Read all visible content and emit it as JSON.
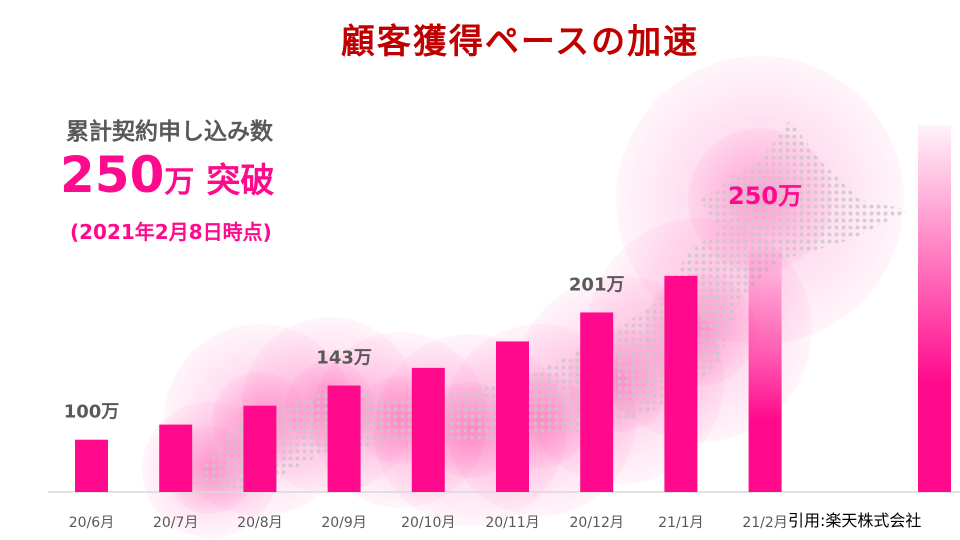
{
  "title": "顧客獲得ペースの加速",
  "summary": {
    "label": "累計契約申し込み数",
    "value": "250",
    "unit": "万",
    "suffix": "突破",
    "as_of": "(2021年2月8日時点)"
  },
  "source": "引用:楽天株式会社",
  "colors": {
    "bar": "#ff0a8c",
    "title": "#c00000",
    "label": "#595959"
  },
  "chart_data": {
    "type": "bar",
    "categories": [
      "20/6月",
      "20/7月",
      "20/8月",
      "20/9月",
      "20/10月",
      "20/11月",
      "20/12月",
      "21/1月",
      "21/2月"
    ],
    "values": [
      100,
      112,
      127,
      143,
      157,
      178,
      201,
      230,
      250
    ],
    "unit": "万",
    "data_labels": [
      {
        "category": "20/6月",
        "text": "100万"
      },
      {
        "category": "20/9月",
        "text": "143万"
      },
      {
        "category": "20/12月",
        "text": "201万"
      },
      {
        "category": "21/2月",
        "text": "250万"
      }
    ],
    "grid": false,
    "legend": "none"
  }
}
